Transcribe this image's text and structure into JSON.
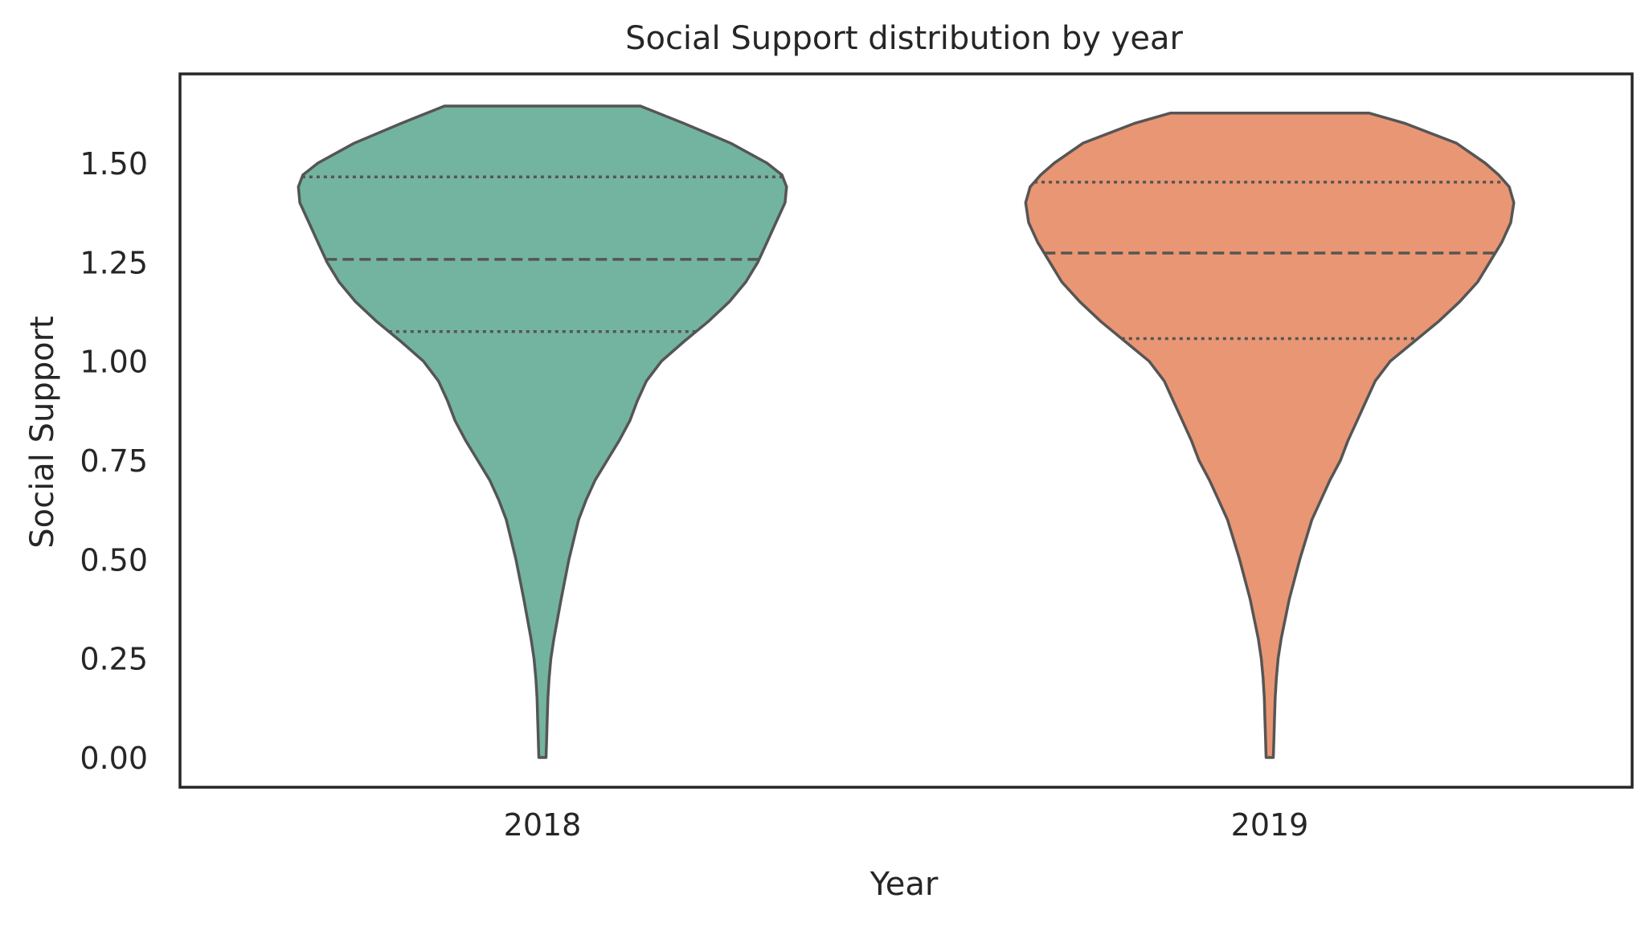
{
  "chart_data": {
    "type": "violin",
    "title": "Social Support distribution by year",
    "xlabel": "Year",
    "ylabel": "Social Support",
    "categories": [
      "2018",
      "2019"
    ],
    "ylim": [
      -0.08,
      1.7
    ],
    "yticks": [
      0.0,
      0.25,
      0.5,
      0.75,
      1.0,
      1.25,
      1.5
    ],
    "ytick_labels": [
      "0.00",
      "0.25",
      "0.50",
      "0.75",
      "1.00",
      "1.25",
      "1.50"
    ],
    "grid": false,
    "legend": "none",
    "series": [
      {
        "category": "2018",
        "color": "#73b4a0",
        "range": [
          0.0,
          1.644
        ],
        "quartiles": {
          "q1": 1.075,
          "median": 1.257,
          "q3": 1.465
        },
        "density_profile": [
          [
            0.0,
            0.012
          ],
          [
            0.05,
            0.014
          ],
          [
            0.1,
            0.016
          ],
          [
            0.15,
            0.018
          ],
          [
            0.2,
            0.022
          ],
          [
            0.25,
            0.028
          ],
          [
            0.3,
            0.038
          ],
          [
            0.4,
            0.062
          ],
          [
            0.5,
            0.088
          ],
          [
            0.6,
            0.12
          ],
          [
            0.65,
            0.145
          ],
          [
            0.7,
            0.175
          ],
          [
            0.75,
            0.215
          ],
          [
            0.8,
            0.255
          ],
          [
            0.85,
            0.29
          ],
          [
            0.9,
            0.315
          ],
          [
            0.95,
            0.345
          ],
          [
            1.0,
            0.395
          ],
          [
            1.05,
            0.47
          ],
          [
            1.1,
            0.55
          ],
          [
            1.15,
            0.62
          ],
          [
            1.2,
            0.675
          ],
          [
            1.25,
            0.715
          ],
          [
            1.3,
            0.745
          ],
          [
            1.35,
            0.775
          ],
          [
            1.4,
            0.805
          ],
          [
            1.44,
            0.81
          ],
          [
            1.47,
            0.795
          ],
          [
            1.5,
            0.745
          ],
          [
            1.55,
            0.625
          ],
          [
            1.6,
            0.47
          ],
          [
            1.644,
            0.325
          ]
        ]
      },
      {
        "category": "2019",
        "color": "#e99674",
        "range": [
          0.0,
          1.626
        ],
        "quartiles": {
          "q1": 1.057,
          "median": 1.273,
          "q3": 1.452
        },
        "density_profile": [
          [
            0.0,
            0.012
          ],
          [
            0.05,
            0.014
          ],
          [
            0.1,
            0.016
          ],
          [
            0.15,
            0.018
          ],
          [
            0.2,
            0.022
          ],
          [
            0.25,
            0.028
          ],
          [
            0.3,
            0.038
          ],
          [
            0.4,
            0.065
          ],
          [
            0.5,
            0.1
          ],
          [
            0.6,
            0.14
          ],
          [
            0.65,
            0.17
          ],
          [
            0.7,
            0.2
          ],
          [
            0.75,
            0.235
          ],
          [
            0.8,
            0.26
          ],
          [
            0.85,
            0.29
          ],
          [
            0.9,
            0.32
          ],
          [
            0.95,
            0.35
          ],
          [
            1.0,
            0.4
          ],
          [
            1.05,
            0.48
          ],
          [
            1.1,
            0.56
          ],
          [
            1.15,
            0.63
          ],
          [
            1.2,
            0.69
          ],
          [
            1.25,
            0.73
          ],
          [
            1.3,
            0.77
          ],
          [
            1.35,
            0.8
          ],
          [
            1.4,
            0.81
          ],
          [
            1.44,
            0.795
          ],
          [
            1.47,
            0.76
          ],
          [
            1.5,
            0.715
          ],
          [
            1.55,
            0.62
          ],
          [
            1.6,
            0.45
          ],
          [
            1.626,
            0.33
          ]
        ]
      }
    ]
  },
  "colors": {
    "outline": "#555555",
    "axes": "#262626",
    "text": "#262626",
    "background": "#ffffff"
  }
}
